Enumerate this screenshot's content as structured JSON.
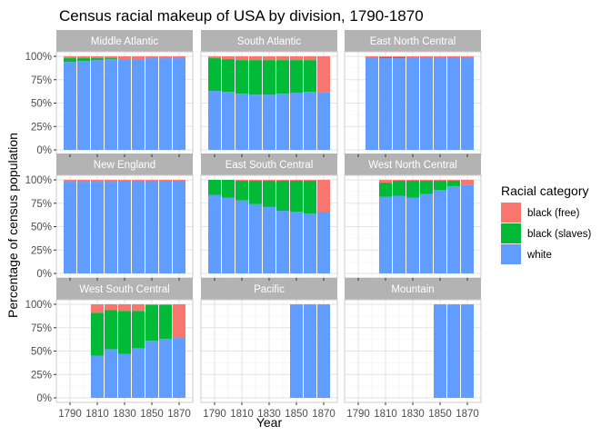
{
  "chart_data": {
    "type": "bar",
    "layout": "faceted stacked percentage bar chart",
    "title": "Census racial makeup of USA by division, 1790-1870",
    "xlabel": "Year",
    "ylabel": "Percentage of census population",
    "x_ticks": [
      "1790",
      "1810",
      "1830",
      "1850",
      "1870"
    ],
    "y_ticks": [
      "0%",
      "25%",
      "50%",
      "75%",
      "100%"
    ],
    "ylim": [
      0,
      1
    ],
    "grid": true,
    "legend": {
      "title": "Racial category",
      "position": "right",
      "entries": [
        {
          "name": "black (free)",
          "color": "#F8766D"
        },
        {
          "name": "black (slaves)",
          "color": "#00BA38"
        },
        {
          "name": "white",
          "color": "#619CFF"
        }
      ]
    },
    "stack_order": [
      "white",
      "black (slaves)",
      "black (free)"
    ],
    "years": [
      1790,
      1800,
      1810,
      1820,
      1830,
      1840,
      1850,
      1860,
      1870
    ],
    "facets": [
      {
        "name": "Middle Atlantic",
        "white": [
          0.94,
          0.95,
          0.96,
          0.97,
          0.97,
          0.97,
          0.98,
          0.98,
          0.98
        ],
        "slaves": [
          0.04,
          0.03,
          0.02,
          0.01,
          0.0,
          0.0,
          0.0,
          0.0,
          0.0
        ],
        "free": [
          0.02,
          0.02,
          0.02,
          0.02,
          0.03,
          0.03,
          0.02,
          0.02,
          0.02
        ]
      },
      {
        "name": "South Atlantic",
        "white": [
          0.63,
          0.62,
          0.6,
          0.59,
          0.59,
          0.6,
          0.61,
          0.62,
          0.62
        ],
        "slaves": [
          0.35,
          0.35,
          0.36,
          0.37,
          0.37,
          0.36,
          0.35,
          0.34,
          0.0
        ],
        "free": [
          0.02,
          0.03,
          0.04,
          0.04,
          0.04,
          0.04,
          0.04,
          0.04,
          0.38
        ]
      },
      {
        "name": "East North Central",
        "white": [
          null,
          0.99,
          0.98,
          0.98,
          0.99,
          0.99,
          0.99,
          0.99,
          0.99
        ],
        "slaves": [
          null,
          0.0,
          0.01,
          0.01,
          0.0,
          0.0,
          0.0,
          0.0,
          0.0
        ],
        "free": [
          null,
          0.01,
          0.01,
          0.01,
          0.01,
          0.01,
          0.01,
          0.01,
          0.01
        ]
      },
      {
        "name": "New England",
        "white": [
          0.98,
          0.98,
          0.98,
          0.98,
          0.99,
          0.99,
          0.99,
          0.99,
          0.99
        ],
        "slaves": [
          0.0,
          0.0,
          0.0,
          0.0,
          0.0,
          0.0,
          0.0,
          0.0,
          0.0
        ],
        "free": [
          0.02,
          0.02,
          0.02,
          0.02,
          0.01,
          0.01,
          0.01,
          0.01,
          0.01
        ]
      },
      {
        "name": "East South Central",
        "white": [
          0.84,
          0.81,
          0.78,
          0.74,
          0.71,
          0.67,
          0.66,
          0.64,
          0.66
        ],
        "slaves": [
          0.16,
          0.19,
          0.21,
          0.25,
          0.28,
          0.32,
          0.33,
          0.35,
          0.0
        ],
        "free": [
          0.0,
          0.0,
          0.01,
          0.01,
          0.01,
          0.01,
          0.01,
          0.01,
          0.34
        ]
      },
      {
        "name": "West North Central",
        "white": [
          null,
          null,
          0.82,
          0.83,
          0.81,
          0.85,
          0.89,
          0.93,
          0.95
        ],
        "slaves": [
          null,
          null,
          0.15,
          0.16,
          0.18,
          0.14,
          0.1,
          0.06,
          0.0
        ],
        "free": [
          null,
          null,
          0.03,
          0.01,
          0.01,
          0.01,
          0.01,
          0.01,
          0.05
        ]
      },
      {
        "name": "West South Central",
        "white": [
          null,
          null,
          0.45,
          0.52,
          0.47,
          0.53,
          0.61,
          0.63,
          0.64
        ],
        "slaves": [
          null,
          null,
          0.46,
          0.42,
          0.46,
          0.4,
          0.38,
          0.36,
          0.0
        ],
        "free": [
          null,
          null,
          0.09,
          0.06,
          0.07,
          0.07,
          0.01,
          0.01,
          0.36
        ]
      },
      {
        "name": "Pacific",
        "white": [
          null,
          null,
          null,
          null,
          null,
          null,
          0.99,
          0.99,
          0.99
        ],
        "slaves": [
          null,
          null,
          null,
          null,
          null,
          null,
          0.0,
          0.0,
          0.0
        ],
        "free": [
          null,
          null,
          null,
          null,
          null,
          null,
          0.01,
          0.01,
          0.01
        ]
      },
      {
        "name": "Mountain",
        "white": [
          null,
          null,
          null,
          null,
          null,
          null,
          0.99,
          0.99,
          0.99
        ],
        "slaves": [
          null,
          null,
          null,
          null,
          null,
          null,
          0.0,
          0.0,
          0.0
        ],
        "free": [
          null,
          null,
          null,
          null,
          null,
          null,
          0.01,
          0.01,
          0.01
        ]
      }
    ]
  }
}
